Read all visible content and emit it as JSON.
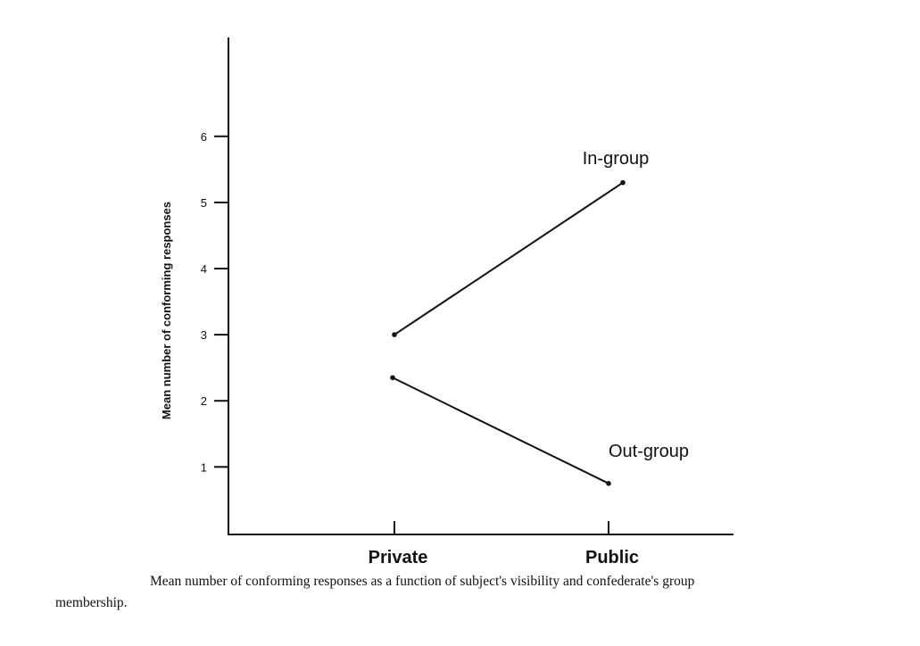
{
  "chart_data": {
    "type": "line",
    "title": "",
    "xlabel": "",
    "ylabel": "Mean number of conforming responses",
    "categories": [
      "Private",
      "Public"
    ],
    "yticks": [
      1,
      2,
      3,
      4,
      5,
      6
    ],
    "ylim": [
      0,
      7.5
    ],
    "grid": false,
    "series": [
      {
        "name": "In-group",
        "values": [
          3.0,
          5.3
        ]
      },
      {
        "name": "Out-group",
        "values": [
          2.35,
          0.75
        ]
      }
    ]
  },
  "caption": {
    "line1": "Mean number of conforming responses as a function of subject's visibility and confederate's group",
    "line2": "membership."
  }
}
